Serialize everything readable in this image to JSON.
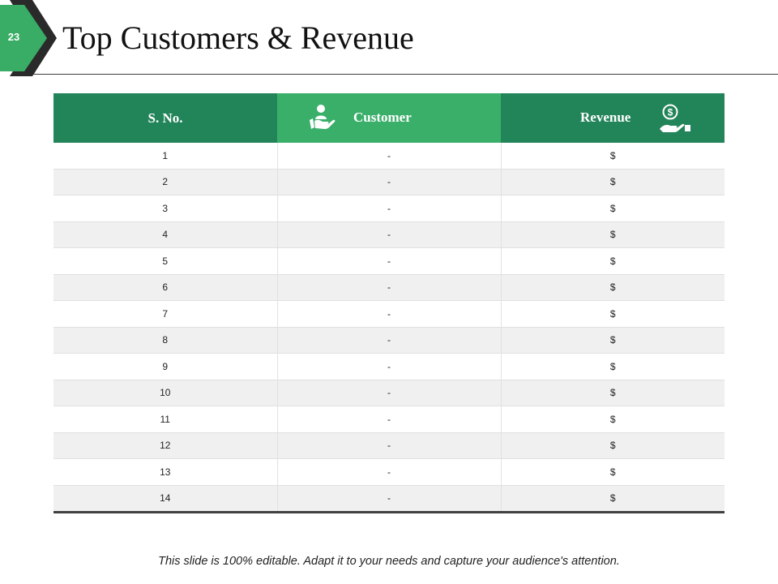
{
  "slide": {
    "number": "23",
    "title": "Top Customers & Revenue",
    "footer": "This slide is 100% editable. Adapt it to your needs and capture your audience's attention."
  },
  "table": {
    "headers": {
      "sno": "S. No.",
      "customer": "Customer",
      "revenue": "Revenue"
    },
    "rows": [
      {
        "sno": "1",
        "customer": "-",
        "revenue": "$"
      },
      {
        "sno": "2",
        "customer": "-",
        "revenue": "$"
      },
      {
        "sno": "3",
        "customer": "-",
        "revenue": "$"
      },
      {
        "sno": "4",
        "customer": "-",
        "revenue": "$"
      },
      {
        "sno": "5",
        "customer": "-",
        "revenue": "$"
      },
      {
        "sno": "6",
        "customer": "-",
        "revenue": "$"
      },
      {
        "sno": "7",
        "customer": "-",
        "revenue": "$"
      },
      {
        "sno": "8",
        "customer": "-",
        "revenue": "$"
      },
      {
        "sno": "9",
        "customer": "-",
        "revenue": "$"
      },
      {
        "sno": "10",
        "customer": "-",
        "revenue": "$"
      },
      {
        "sno": "11",
        "customer": "-",
        "revenue": "$"
      },
      {
        "sno": "12",
        "customer": "-",
        "revenue": "$"
      },
      {
        "sno": "13",
        "customer": "-",
        "revenue": "$"
      },
      {
        "sno": "14",
        "customer": "-",
        "revenue": "$"
      }
    ]
  },
  "icons": {
    "customer": "customer-hand-icon",
    "revenue": "money-hand-icon"
  },
  "colors": {
    "header_dark": "#228459",
    "header_light": "#3aaf6a",
    "badge_green": "#39ac65",
    "badge_dark": "#2a2a2a"
  }
}
